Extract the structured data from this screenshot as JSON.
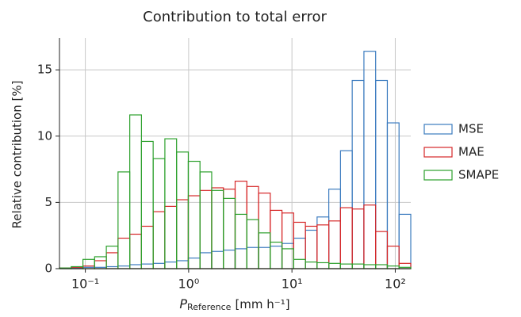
{
  "chart_data": {
    "type": "histogram",
    "title": "Contribution to total error",
    "xlabel": {
      "symbol": "P",
      "subscript": "Reference",
      "unit": "[mm h⁻¹]"
    },
    "ylabel": "Relative contribution [%]",
    "log_x": true,
    "grid": true,
    "legend": "right",
    "bins": [
      0.0562,
      0.073,
      0.0948,
      0.123,
      0.1597,
      0.2073,
      0.2692,
      0.3494,
      0.4535,
      0.5888,
      0.7644,
      0.9924,
      1.288,
      1.672,
      2.171,
      2.818,
      3.659,
      4.75,
      6.166,
      8.005,
      10.39,
      13.49,
      17.51,
      22.73,
      29.51,
      38.31,
      49.74,
      64.57,
      83.82,
      108.8,
      141.3
    ],
    "xlim": [
      0.0562,
      141.3
    ],
    "xticks": [
      {
        "value": 0.1,
        "label": "10⁻¹"
      },
      {
        "value": 1,
        "label": "10⁰"
      },
      {
        "value": 10,
        "label": "10¹"
      },
      {
        "value": 100,
        "label": "10²"
      }
    ],
    "ylim": [
      0,
      17.4
    ],
    "yticks": [
      0,
      5,
      10,
      15
    ],
    "series": [
      {
        "name": "MSE",
        "color": "#3b7bbf",
        "values": [
          0.05,
          0.05,
          0.1,
          0.1,
          0.15,
          0.2,
          0.3,
          0.35,
          0.4,
          0.5,
          0.6,
          0.8,
          1.2,
          1.3,
          1.4,
          1.5,
          1.6,
          1.6,
          1.7,
          1.9,
          2.3,
          2.9,
          3.9,
          6.0,
          8.9,
          14.2,
          16.4,
          14.2,
          11.0,
          4.1
        ]
      },
      {
        "name": "MAE",
        "color": "#d62728",
        "values": [
          0.05,
          0.1,
          0.2,
          0.6,
          1.2,
          2.3,
          2.6,
          3.2,
          4.3,
          4.7,
          5.2,
          5.5,
          5.9,
          6.1,
          6.0,
          6.6,
          6.2,
          5.7,
          4.4,
          4.2,
          3.5,
          3.2,
          3.3,
          3.6,
          4.6,
          4.5,
          4.8,
          2.8,
          1.7,
          0.4
        ]
      },
      {
        "name": "SMAPE",
        "color": "#2ca02c",
        "values": [
          0.05,
          0.15,
          0.7,
          0.9,
          1.7,
          7.3,
          11.6,
          9.6,
          8.3,
          9.8,
          8.8,
          8.1,
          7.3,
          5.9,
          5.3,
          4.1,
          3.7,
          2.7,
          2.0,
          1.5,
          0.7,
          0.5,
          0.45,
          0.4,
          0.35,
          0.35,
          0.3,
          0.3,
          0.2,
          0.1
        ]
      }
    ]
  }
}
